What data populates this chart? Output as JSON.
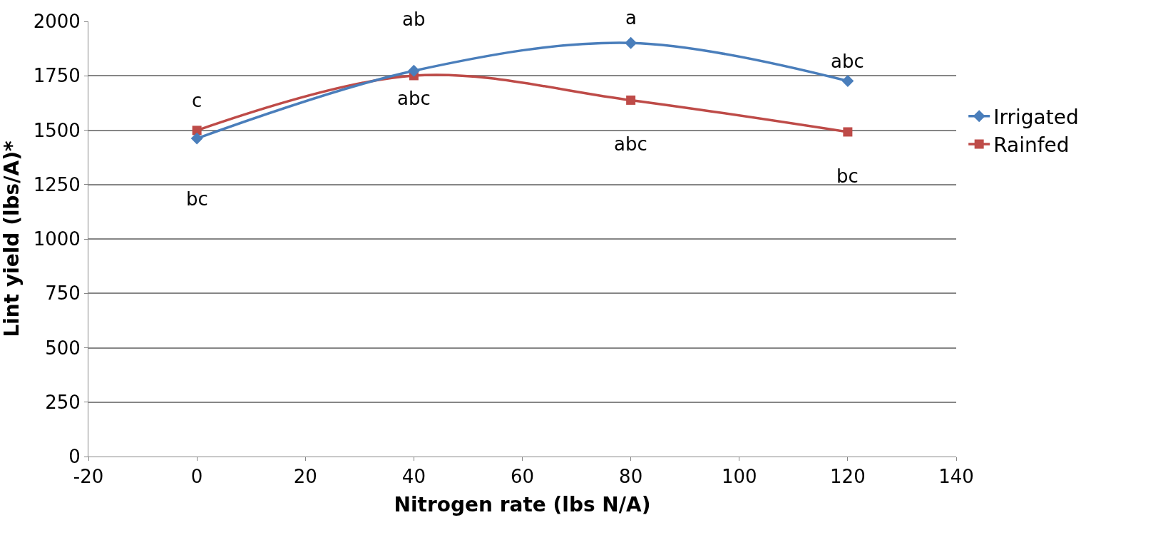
{
  "chart_data": {
    "type": "line",
    "xlabel": "Nitrogen rate (lbs N/A)",
    "ylabel": "Lint yield (lbs/A)*",
    "x": [
      0,
      40,
      80,
      120
    ],
    "series": [
      {
        "name": "Irrigated",
        "color": "#4a7ebb",
        "marker": "diamond",
        "values": [
          1462,
          1773,
          1901,
          1726
        ]
      },
      {
        "name": "Rainfed",
        "color": "#be4b48",
        "marker": "square",
        "values": [
          1499,
          1751,
          1638,
          1492
        ]
      }
    ],
    "xlim": [
      -20,
      140
    ],
    "xticks": [
      -20,
      0,
      20,
      40,
      60,
      80,
      100,
      120,
      140
    ],
    "ylim": [
      0,
      2000
    ],
    "yticks": [
      0,
      250,
      500,
      750,
      1000,
      1250,
      1500,
      1750,
      2000
    ],
    "grid": "y",
    "legend": "right",
    "line_style": "solid",
    "annotations": [
      "bc",
      "ab",
      "a",
      "abc",
      "c",
      "abc",
      "abc",
      "bc"
    ]
  }
}
